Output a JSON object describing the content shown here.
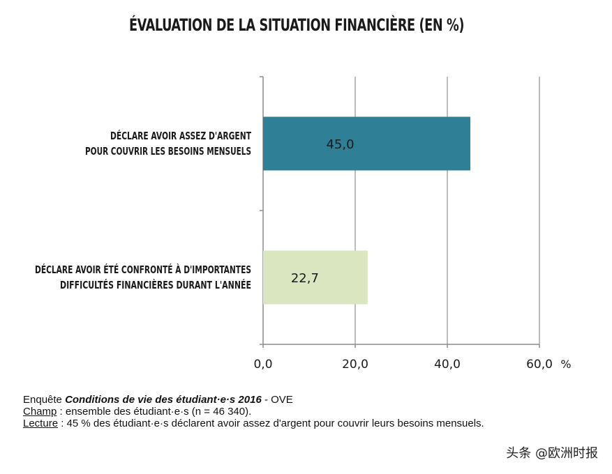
{
  "title": "ÉVALUATION DE LA SITUATION FINANCIÈRE (EN %)",
  "chart_data": {
    "type": "bar",
    "orientation": "horizontal",
    "categories": [
      [
        "DÉCLARE AVOIR ASSEZ D'ARGENT",
        "POUR COUVRIR LES BESOINS MENSUELS"
      ],
      [
        "DÉCLARE AVOIR ÉTÉ CONFRONTÉ À D'IMPORTANTES",
        "DIFFICULTÉS FINANCIÈRES DURANT L'ANNÉE"
      ]
    ],
    "values": [
      45.0,
      22.7
    ],
    "value_labels": [
      "45,0",
      "22,7"
    ],
    "colors": [
      "#2f7f96",
      "#d9e6c0"
    ],
    "xlim": [
      0,
      60
    ],
    "xticks": [
      0,
      20,
      40,
      60
    ],
    "xtick_labels": [
      "0,0",
      "20,0",
      "40,0",
      "60,0"
    ],
    "xunit": "%",
    "grid": true
  },
  "source": {
    "line1_prefix": "Enquête ",
    "line1_bold": "Conditions de vie des étudiant·e·s 2016",
    "line1_suffix": " - OVE",
    "champ_label": "Champ",
    "champ_text": " : ensemble des étudiant·e·s  (n = 46 340).",
    "lecture_label": "Lecture",
    "lecture_text": " : 45 % des étudiant·e·s déclarent avoir assez d'argent pour couvrir leurs besoins mensuels."
  },
  "watermark": "头条 @欧洲时报"
}
